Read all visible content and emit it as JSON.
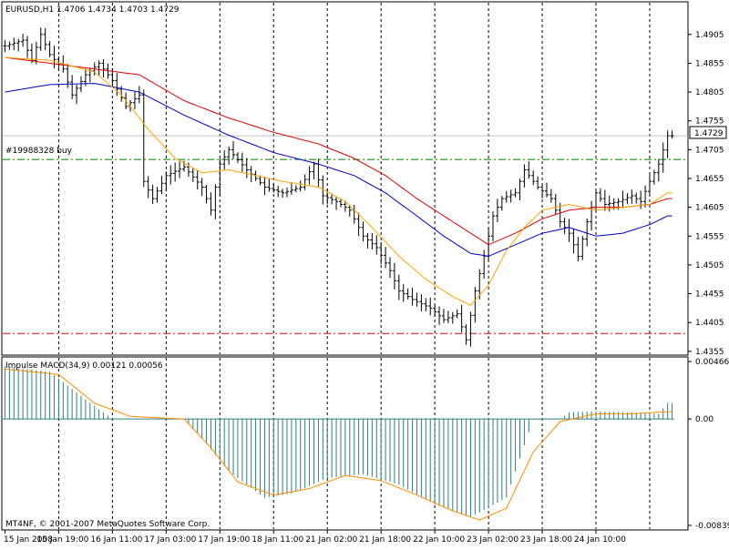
{
  "header": {
    "symbol_text": "EURUSD,H1  1.4706 1.4734 1.4703 1.4729"
  },
  "footer": {
    "copyright": "MT4NF, © 2001-2007 MetaQuotes Software Corp."
  },
  "trade_line": {
    "label": "#19988328 buy",
    "price": 1.4688,
    "color": "#008000"
  },
  "stop_line": {
    "price": 1.4386,
    "color": "#ff0000"
  },
  "current_price": {
    "label": "1.4729",
    "value": 1.4729
  },
  "colors": {
    "bars": "#000000",
    "ma_red": "#e00000",
    "ma_blue": "#0000cc",
    "ma_orange": "#ffa500",
    "hist": "#2f7f7f",
    "signal": "#ff8c00",
    "grid": "#a0a0a0"
  },
  "chart_data": [
    {
      "type": "line",
      "title": "EURUSD,H1  1.4706 1.4734 1.4703 1.4729",
      "y_ticks": [
        {
          "label": "1.4905",
          "value": 1.4905
        },
        {
          "label": "1.4855",
          "value": 1.4855
        },
        {
          "label": "1.4805",
          "value": 1.4805
        },
        {
          "label": "1.4755",
          "value": 1.4755
        },
        {
          "label": "1.4705",
          "value": 1.4705
        },
        {
          "label": "1.4655",
          "value": 1.4655
        },
        {
          "label": "1.4605",
          "value": 1.4605
        },
        {
          "label": "1.4555",
          "value": 1.4555
        },
        {
          "label": "1.4505",
          "value": 1.4505
        },
        {
          "label": "1.4455",
          "value": 1.4455
        },
        {
          "label": "1.4405",
          "value": 1.4405
        },
        {
          "label": "1.4355",
          "value": 1.4355
        }
      ],
      "ylim": [
        1.435,
        1.496
      ],
      "x_labels": [
        "15 Jan 2008",
        "15 Jan 19:00",
        "16 Jan 11:00",
        "17 Jan 03:00",
        "17 Jan 19:00",
        "18 Jan 11:00",
        "21 Jan 02:00",
        "21 Jan 18:00",
        "22 Jan 10:00",
        "23 Jan 02:00",
        "23 Jan 18:00",
        "24 Jan 10:00"
      ],
      "ohlc_keypoints": [
        {
          "i": 0,
          "c": 1.4885
        },
        {
          "i": 4,
          "c": 1.4895
        },
        {
          "i": 6,
          "c": 1.486
        },
        {
          "i": 8,
          "c": 1.4905
        },
        {
          "i": 10,
          "c": 1.487
        },
        {
          "i": 13,
          "c": 1.4845
        },
        {
          "i": 15,
          "c": 1.48
        },
        {
          "i": 18,
          "c": 1.4835
        },
        {
          "i": 21,
          "c": 1.4855
        },
        {
          "i": 24,
          "c": 1.4825
        },
        {
          "i": 27,
          "c": 1.478
        },
        {
          "i": 30,
          "c": 1.48
        },
        {
          "i": 31,
          "c": 1.465
        },
        {
          "i": 33,
          "c": 1.462
        },
        {
          "i": 36,
          "c": 1.466
        },
        {
          "i": 40,
          "c": 1.4675
        },
        {
          "i": 44,
          "c": 1.464
        },
        {
          "i": 46,
          "c": 1.46
        },
        {
          "i": 48,
          "c": 1.468
        },
        {
          "i": 50,
          "c": 1.4705
        },
        {
          "i": 54,
          "c": 1.467
        },
        {
          "i": 58,
          "c": 1.464
        },
        {
          "i": 62,
          "c": 1.463
        },
        {
          "i": 66,
          "c": 1.464
        },
        {
          "i": 69,
          "c": 1.468
        },
        {
          "i": 71,
          "c": 1.4625
        },
        {
          "i": 74,
          "c": 1.4615
        },
        {
          "i": 77,
          "c": 1.46
        },
        {
          "i": 80,
          "c": 1.4555
        },
        {
          "i": 83,
          "c": 1.4535
        },
        {
          "i": 86,
          "c": 1.4495
        },
        {
          "i": 88,
          "c": 1.446
        },
        {
          "i": 91,
          "c": 1.4445
        },
        {
          "i": 95,
          "c": 1.443
        },
        {
          "i": 98,
          "c": 1.441
        },
        {
          "i": 101,
          "c": 1.442
        },
        {
          "i": 103,
          "c": 1.4375
        },
        {
          "i": 105,
          "c": 1.446
        },
        {
          "i": 107,
          "c": 1.452
        },
        {
          "i": 109,
          "c": 1.459
        },
        {
          "i": 111,
          "c": 1.462
        },
        {
          "i": 114,
          "c": 1.463
        },
        {
          "i": 116,
          "c": 1.467
        },
        {
          "i": 119,
          "c": 1.464
        },
        {
          "i": 122,
          "c": 1.462
        },
        {
          "i": 124,
          "c": 1.458
        },
        {
          "i": 126,
          "c": 1.456
        },
        {
          "i": 128,
          "c": 1.452
        },
        {
          "i": 130,
          "c": 1.458
        },
        {
          "i": 132,
          "c": 1.463
        },
        {
          "i": 134,
          "c": 1.461
        },
        {
          "i": 137,
          "c": 1.4615
        },
        {
          "i": 140,
          "c": 1.4625
        },
        {
          "i": 142,
          "c": 1.4615
        },
        {
          "i": 144,
          "c": 1.465
        },
        {
          "i": 146,
          "c": 1.468
        },
        {
          "i": 148,
          "c": 1.4729
        }
      ],
      "ma_red": [
        {
          "i": 0,
          "v": 1.4865
        },
        {
          "i": 10,
          "v": 1.4855
        },
        {
          "i": 20,
          "v": 1.4845
        },
        {
          "i": 30,
          "v": 1.4835
        },
        {
          "i": 40,
          "v": 1.479
        },
        {
          "i": 50,
          "v": 1.476
        },
        {
          "i": 60,
          "v": 1.4735
        },
        {
          "i": 70,
          "v": 1.4715
        },
        {
          "i": 78,
          "v": 1.469
        },
        {
          "i": 85,
          "v": 1.466
        },
        {
          "i": 92,
          "v": 1.462
        },
        {
          "i": 98,
          "v": 1.459
        },
        {
          "i": 104,
          "v": 1.456
        },
        {
          "i": 108,
          "v": 1.454
        },
        {
          "i": 114,
          "v": 1.456
        },
        {
          "i": 120,
          "v": 1.4585
        },
        {
          "i": 126,
          "v": 1.46
        },
        {
          "i": 132,
          "v": 1.4605
        },
        {
          "i": 138,
          "v": 1.4605
        },
        {
          "i": 144,
          "v": 1.461
        },
        {
          "i": 148,
          "v": 1.462
        }
      ],
      "ma_blue": [
        {
          "i": 0,
          "v": 1.4805
        },
        {
          "i": 10,
          "v": 1.4818
        },
        {
          "i": 20,
          "v": 1.482
        },
        {
          "i": 30,
          "v": 1.4805
        },
        {
          "i": 40,
          "v": 1.4765
        },
        {
          "i": 50,
          "v": 1.473
        },
        {
          "i": 60,
          "v": 1.47
        },
        {
          "i": 70,
          "v": 1.468
        },
        {
          "i": 78,
          "v": 1.466
        },
        {
          "i": 85,
          "v": 1.463
        },
        {
          "i": 92,
          "v": 1.459
        },
        {
          "i": 98,
          "v": 1.4555
        },
        {
          "i": 104,
          "v": 1.4525
        },
        {
          "i": 108,
          "v": 1.452
        },
        {
          "i": 114,
          "v": 1.454
        },
        {
          "i": 120,
          "v": 1.456
        },
        {
          "i": 126,
          "v": 1.457
        },
        {
          "i": 132,
          "v": 1.4555
        },
        {
          "i": 138,
          "v": 1.456
        },
        {
          "i": 144,
          "v": 1.4575
        },
        {
          "i": 148,
          "v": 1.459
        }
      ],
      "ma_orange": [
        {
          "i": 0,
          "v": 1.4865
        },
        {
          "i": 10,
          "v": 1.486
        },
        {
          "i": 20,
          "v": 1.484
        },
        {
          "i": 26,
          "v": 1.48
        },
        {
          "i": 32,
          "v": 1.474
        },
        {
          "i": 38,
          "v": 1.469
        },
        {
          "i": 44,
          "v": 1.4665
        },
        {
          "i": 50,
          "v": 1.467
        },
        {
          "i": 56,
          "v": 1.466
        },
        {
          "i": 62,
          "v": 1.465
        },
        {
          "i": 70,
          "v": 1.464
        },
        {
          "i": 76,
          "v": 1.4615
        },
        {
          "i": 82,
          "v": 1.457
        },
        {
          "i": 88,
          "v": 1.452
        },
        {
          "i": 94,
          "v": 1.448
        },
        {
          "i": 100,
          "v": 1.445
        },
        {
          "i": 104,
          "v": 1.4435
        },
        {
          "i": 108,
          "v": 1.447
        },
        {
          "i": 112,
          "v": 1.453
        },
        {
          "i": 116,
          "v": 1.457
        },
        {
          "i": 120,
          "v": 1.46
        },
        {
          "i": 126,
          "v": 1.461
        },
        {
          "i": 132,
          "v": 1.46
        },
        {
          "i": 138,
          "v": 1.4605
        },
        {
          "i": 144,
          "v": 1.461
        },
        {
          "i": 148,
          "v": 1.463
        }
      ],
      "bar_count": 150
    },
    {
      "type": "bar",
      "title": "Impulse MACD(34,9) 0.00121 0.00056",
      "y_ticks": [
        {
          "label": "0.00466",
          "value": 0.00466
        },
        {
          "label": "0.00",
          "value": 0.0
        },
        {
          "label": "-0.00839",
          "value": -0.00839
        }
      ],
      "ylim": [
        -0.00839,
        0.00466
      ],
      "histogram_keypoints": [
        {
          "i": 0,
          "v": 0.004
        },
        {
          "i": 10,
          "v": 0.0036
        },
        {
          "i": 18,
          "v": 0.0015
        },
        {
          "i": 24,
          "v": 0.0
        },
        {
          "i": 40,
          "v": 0.0
        },
        {
          "i": 44,
          "v": -0.0015
        },
        {
          "i": 50,
          "v": -0.004
        },
        {
          "i": 58,
          "v": -0.006
        },
        {
          "i": 64,
          "v": -0.0057
        },
        {
          "i": 72,
          "v": -0.0045
        },
        {
          "i": 80,
          "v": -0.0042
        },
        {
          "i": 88,
          "v": -0.005
        },
        {
          "i": 96,
          "v": -0.0065
        },
        {
          "i": 104,
          "v": -0.0075
        },
        {
          "i": 112,
          "v": -0.006
        },
        {
          "i": 116,
          "v": -0.002
        },
        {
          "i": 118,
          "v": 0.0
        },
        {
          "i": 124,
          "v": 0.0
        },
        {
          "i": 126,
          "v": 0.0005
        },
        {
          "i": 132,
          "v": 0.0006
        },
        {
          "i": 140,
          "v": 0.0005
        },
        {
          "i": 146,
          "v": 0.0004
        },
        {
          "i": 148,
          "v": 0.00121
        }
      ],
      "signal_keypoints": [
        {
          "i": 0,
          "v": 0.0038
        },
        {
          "i": 12,
          "v": 0.0034
        },
        {
          "i": 20,
          "v": 0.0012
        },
        {
          "i": 28,
          "v": 0.0002
        },
        {
          "i": 40,
          "v": 0.0
        },
        {
          "i": 46,
          "v": -0.0022
        },
        {
          "i": 52,
          "v": -0.0048
        },
        {
          "i": 60,
          "v": -0.0058
        },
        {
          "i": 68,
          "v": -0.0053
        },
        {
          "i": 76,
          "v": -0.0043
        },
        {
          "i": 84,
          "v": -0.0047
        },
        {
          "i": 92,
          "v": -0.0058
        },
        {
          "i": 100,
          "v": -0.007
        },
        {
          "i": 106,
          "v": -0.0077
        },
        {
          "i": 112,
          "v": -0.0068
        },
        {
          "i": 118,
          "v": -0.0025
        },
        {
          "i": 124,
          "v": -0.0002
        },
        {
          "i": 132,
          "v": 0.0004
        },
        {
          "i": 140,
          "v": 0.0004
        },
        {
          "i": 148,
          "v": 0.00056
        }
      ],
      "bar_count": 150
    }
  ]
}
